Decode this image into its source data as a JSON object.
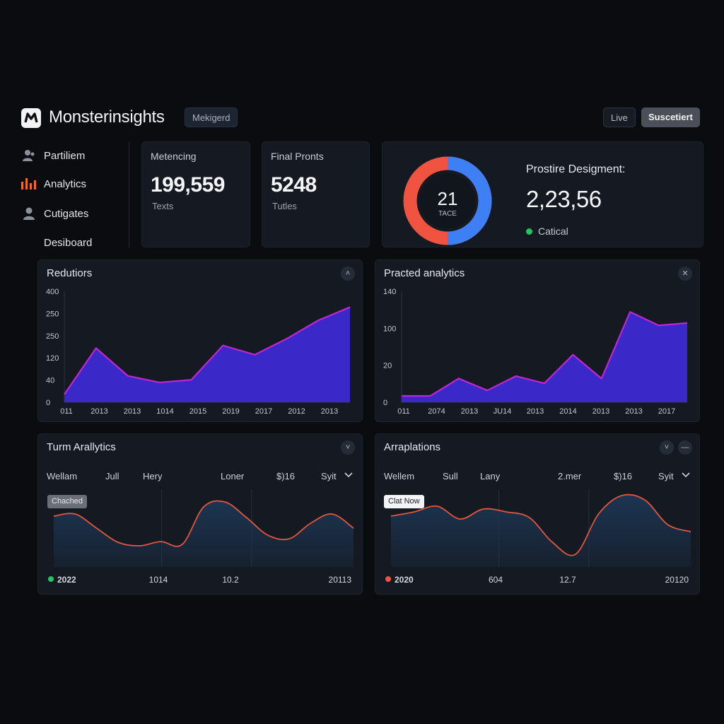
{
  "header": {
    "brand": "Monsterinsights",
    "segment_label": "Mekigerd",
    "live_label": "Live",
    "submit_label": "Suscetiert"
  },
  "sidebar": {
    "items": [
      {
        "label": "Partiliem",
        "icon": "users-icon"
      },
      {
        "label": "Analytics",
        "icon": "analytics-icon"
      },
      {
        "label": "Cutigates",
        "icon": "user-icon"
      },
      {
        "label": "Desiboard",
        "icon": ""
      }
    ]
  },
  "stats": [
    {
      "label": "Metencing",
      "value": "199,559",
      "sub": "Texts"
    },
    {
      "label": "Final Pronts",
      "value": "5248",
      "sub": "Tutles"
    }
  ],
  "donut": {
    "center_value": "21",
    "center_label": "TACE",
    "title": "Prostire Desigment:",
    "value": "2,23,56",
    "status": "Catical",
    "status_color": "#22c55e",
    "segments": [
      {
        "color": "#f0533f",
        "fraction": 0.5
      },
      {
        "color": "#3f7ff5",
        "fraction": 0.5
      }
    ]
  },
  "panels": {
    "redutiors": {
      "title": "Redutiors",
      "button_icon": "chevron-up-icon"
    },
    "practed": {
      "title": "Practed analytics",
      "button_icon": "close-icon"
    },
    "turm": {
      "title": "Turm Arallytics",
      "button_icon": "chevron-down-icon",
      "columns": [
        "Wellam",
        "Jull",
        "Hery",
        "Loner",
        "$)16",
        "Syit"
      ],
      "tag": "Chached",
      "legend": {
        "label": "2022",
        "color": "#22c55e"
      },
      "footer": [
        "1014",
        "10.2",
        "20113"
      ]
    },
    "arraplations": {
      "title": "Arraplations",
      "button_icons": [
        "chevron-down-icon",
        "minus-icon"
      ],
      "columns": [
        "Wellem",
        "Sull",
        "Lany",
        "2.mer",
        "$)16",
        "Syit"
      ],
      "tag": "Clat Now",
      "legend": {
        "label": "2020",
        "color": "#f0533f"
      },
      "footer": [
        "604",
        "12.7",
        "20120"
      ]
    }
  },
  "chart_data": [
    {
      "type": "area",
      "title": "Redutiors",
      "y_ticks": [
        "400",
        "250",
        "250",
        "120",
        "40",
        "0"
      ],
      "x_ticks": [
        "011",
        "2013",
        "2013",
        "1014",
        "2015",
        "2019",
        "2017",
        "2012",
        "2013"
      ],
      "values": [
        30,
        205,
        100,
        75,
        85,
        215,
        180,
        240,
        310,
        360
      ],
      "ylim": [
        0,
        420
      ],
      "color_line": "#c026d3",
      "color_fill": "#3b28c8"
    },
    {
      "type": "area",
      "title": "Practed analytics",
      "y_ticks": [
        "140",
        "100",
        "20",
        "0"
      ],
      "x_ticks": [
        "011",
        "2074",
        "2013",
        "JU14",
        "2013",
        "2014",
        "2013",
        "2013",
        "2017"
      ],
      "values": [
        8,
        8,
        30,
        15,
        33,
        24,
        60,
        30,
        114,
        97,
        100
      ],
      "ylim": [
        0,
        140
      ],
      "color_line": "#c026d3",
      "color_fill": "#3b28c8"
    },
    {
      "type": "area",
      "title": "Turm Arallytics",
      "values": [
        72,
        75,
        55,
        35,
        30,
        36,
        32,
        85,
        92,
        70,
        45,
        40,
        62,
        75,
        55
      ],
      "ylim": [
        0,
        110
      ],
      "color_line": "#e0563f",
      "color_fill": "#1c3552"
    },
    {
      "type": "area",
      "title": "Arraplations",
      "values": [
        72,
        78,
        86,
        68,
        82,
        78,
        70,
        35,
        18,
        75,
        101,
        95,
        60,
        50
      ],
      "ylim": [
        0,
        110
      ],
      "color_line": "#e0563f",
      "color_fill": "#1c3552"
    }
  ]
}
